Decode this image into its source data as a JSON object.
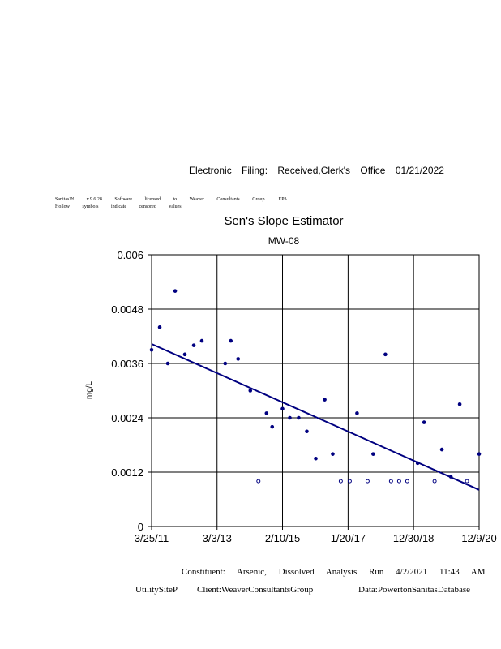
{
  "header": {
    "filing": "Electronic Filing: Received,Clerk's Office 01/21/2022",
    "license": "Sanitas™ v.9.6.28 Software licensed to Weaver Consultants Group. EPA",
    "note": "Hollow symbols indicate censored values."
  },
  "footer": {
    "line1": "Constituent: Arsenic, Dissolved Analysis Run 4/2/2021 11:43 AM",
    "site": "UtilitySiteP",
    "client": "Client:WeaverConsultantsGroup",
    "data": "Data:PowertonSanitasDatabase"
  },
  "chart_data": {
    "type": "scatter",
    "title": "Sen's Slope Estimator",
    "subtitle": "MW-08",
    "ylabel": "mg/L",
    "xlabel": "",
    "xlim": [
      "2011-03-25",
      "2020-12-09"
    ],
    "ylim": [
      0,
      0.006
    ],
    "grid": true,
    "x_ticks": [
      {
        "date": "2011-03-25",
        "label": "3/25/11"
      },
      {
        "date": "2013-03-03",
        "label": "3/3/13"
      },
      {
        "date": "2015-02-10",
        "label": "2/10/15"
      },
      {
        "date": "2017-01-20",
        "label": "1/20/17"
      },
      {
        "date": "2018-12-30",
        "label": "12/30/18"
      },
      {
        "date": "2020-12-09",
        "label": "12/9/20"
      }
    ],
    "y_ticks": [
      {
        "value": 0,
        "label": "0"
      },
      {
        "value": 0.0012,
        "label": "0.0012"
      },
      {
        "value": 0.0024,
        "label": "0.0024"
      },
      {
        "value": 0.0036,
        "label": "0.0036"
      },
      {
        "value": 0.0048,
        "label": "0.0048"
      },
      {
        "value": 0.006,
        "label": "0.006"
      }
    ],
    "colors": {
      "points": "#000080",
      "trend": "#000080"
    },
    "detected": [
      [
        "2011-03-25",
        0.0039
      ],
      [
        "2011-06-21",
        0.0044
      ],
      [
        "2011-09-17",
        0.0036
      ],
      [
        "2011-12-05",
        0.0052
      ],
      [
        "2012-03-19",
        0.0038
      ],
      [
        "2012-06-24",
        0.004
      ],
      [
        "2012-09-19",
        0.0041
      ],
      [
        "2013-05-30",
        0.0036
      ],
      [
        "2013-07-30",
        0.0041
      ],
      [
        "2013-10-17",
        0.0037
      ],
      [
        "2014-02-26",
        0.003
      ],
      [
        "2014-08-21",
        0.0025
      ],
      [
        "2014-10-21",
        0.0022
      ],
      [
        "2015-02-10",
        0.0026
      ],
      [
        "2015-04-30",
        0.0024
      ],
      [
        "2015-08-04",
        0.0024
      ],
      [
        "2015-10-31",
        0.0021
      ],
      [
        "2016-02-05",
        0.0015
      ],
      [
        "2016-05-12",
        0.0028
      ],
      [
        "2016-08-07",
        0.0016
      ],
      [
        "2017-04-27",
        0.0025
      ],
      [
        "2017-10-19",
        0.0016
      ],
      [
        "2018-02-28",
        0.0038
      ],
      [
        "2019-02-12",
        0.0014
      ],
      [
        "2019-04-23",
        0.0023
      ],
      [
        "2019-11-02",
        0.0017
      ],
      [
        "2020-02-07",
        0.0011
      ],
      [
        "2020-05-13",
        0.0027
      ],
      [
        "2020-12-09",
        0.0016
      ]
    ],
    "censored": [
      [
        "2014-05-25",
        0.001
      ],
      [
        "2016-11-02",
        0.001
      ],
      [
        "2017-02-07",
        0.001
      ],
      [
        "2017-08-19",
        0.001
      ],
      [
        "2018-04-30",
        0.001
      ],
      [
        "2018-07-27",
        0.001
      ],
      [
        "2018-10-23",
        0.001
      ],
      [
        "2019-08-15",
        0.001
      ],
      [
        "2020-07-31",
        0.001
      ]
    ],
    "trend_line": [
      [
        "2011-03-25",
        0.00403
      ],
      [
        "2020-12-09",
        0.00081
      ]
    ]
  }
}
